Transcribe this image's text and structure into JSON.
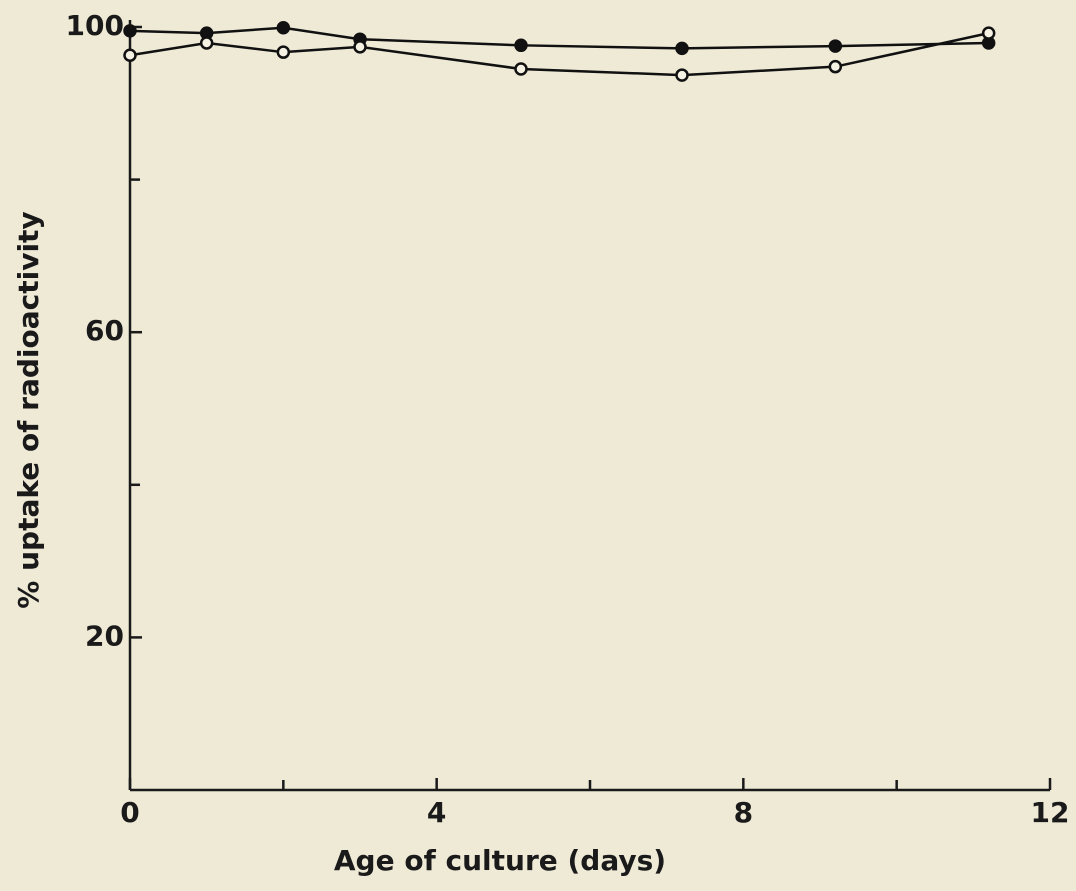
{
  "chart_data": {
    "type": "line",
    "xlabel": "Age of culture  (days)",
    "ylabel": "% uptake of radioactivity",
    "x": [
      0,
      1,
      2,
      3,
      5.1,
      7.2,
      9.2,
      11.2
    ],
    "series": [
      {
        "color": "#111111",
        "marker": "filled",
        "values": [
          99.5,
          99.2,
          99.9,
          98.4,
          97.6,
          97.2,
          97.5,
          97.9
        ]
      },
      {
        "color": "#111111",
        "marker": "open",
        "values": [
          96.3,
          97.9,
          96.7,
          97.4,
          94.5,
          93.7,
          94.8,
          99.2
        ]
      }
    ],
    "xlim": [
      0,
      12
    ],
    "xticks": [
      0,
      4,
      8,
      12
    ],
    "xminorticks": [
      2,
      6,
      10
    ],
    "ylim": [
      0,
      100
    ],
    "yticks": [
      20,
      60,
      100
    ],
    "yminorticks": [
      40,
      80
    ],
    "grid": false
  }
}
